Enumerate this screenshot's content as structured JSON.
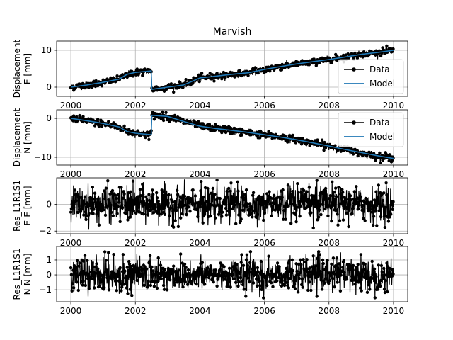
{
  "colors": {
    "data": "#000000",
    "model": "#1f77b4",
    "grid": "#b0b0b0"
  },
  "chart_data": [
    {
      "type": "line",
      "title": "Marvish",
      "ylabel": [
        "Displacement",
        "E [mm]"
      ],
      "xlim": [
        1999.56,
        2010.44
      ],
      "ylim": [
        -2.5,
        12.5
      ],
      "xticks": [
        2000,
        2002,
        2004,
        2006,
        2008,
        2010
      ],
      "yticks": [
        0,
        10
      ],
      "legend": {
        "placement": "lower-right",
        "entries": [
          "Data",
          "Model"
        ]
      },
      "series": [
        {
          "name": "Data",
          "style": "points-line",
          "noise": 0.45,
          "x": [
            2000.0,
            2000.5,
            2001.0,
            2001.5,
            2001.75,
            2002.0,
            2002.49,
            2002.51,
            2003.0,
            2003.5,
            2004.0,
            2004.5,
            2005.0,
            2005.5,
            2006.0,
            2006.5,
            2007.0,
            2007.5,
            2008.0,
            2008.5,
            2009.0,
            2009.5,
            2010.0
          ],
          "y": [
            0.0,
            0.6,
            1.3,
            2.2,
            3.5,
            4.0,
            4.4,
            -0.6,
            0.0,
            0.6,
            2.5,
            3.0,
            3.5,
            3.9,
            4.8,
            5.6,
            6.3,
            6.9,
            7.5,
            8.2,
            8.9,
            9.4,
            10.0
          ]
        },
        {
          "name": "Model",
          "style": "line",
          "x": [
            2000.0,
            2000.5,
            2001.0,
            2001.5,
            2001.75,
            2002.0,
            2002.49,
            2002.51,
            2003.0,
            2003.5,
            2004.0,
            2004.5,
            2005.0,
            2005.5,
            2006.0,
            2006.5,
            2007.0,
            2007.5,
            2008.0,
            2008.5,
            2009.0,
            2009.5,
            2010.0
          ],
          "y": [
            0.0,
            0.6,
            1.3,
            2.2,
            3.5,
            4.0,
            4.4,
            -0.6,
            0.0,
            0.6,
            2.5,
            3.0,
            3.5,
            3.9,
            4.8,
            5.6,
            6.3,
            6.9,
            7.5,
            8.2,
            8.9,
            9.4,
            10.0
          ]
        }
      ]
    },
    {
      "type": "line",
      "title": "",
      "ylabel": [
        "Displacement",
        "N [mm]"
      ],
      "xlim": [
        1999.56,
        2010.44
      ],
      "ylim": [
        -12.0,
        2.2
      ],
      "xticks": [
        2000,
        2002,
        2004,
        2006,
        2008,
        2010
      ],
      "yticks": [
        0,
        -10
      ],
      "legend": {
        "placement": "upper-right",
        "entries": [
          "Data",
          "Model"
        ]
      },
      "series": [
        {
          "name": "Data",
          "style": "points-line",
          "noise": 0.45,
          "x": [
            2000.0,
            2000.5,
            2001.0,
            2001.5,
            2001.75,
            2002.0,
            2002.49,
            2002.51,
            2003.0,
            2003.5,
            2004.0,
            2004.5,
            2005.0,
            2005.5,
            2006.0,
            2006.5,
            2007.0,
            2007.5,
            2008.0,
            2008.5,
            2009.0,
            2009.5,
            2010.0
          ],
          "y": [
            0.0,
            -0.6,
            -1.3,
            -2.2,
            -3.4,
            -3.8,
            -4.2,
            0.8,
            0.5,
            -0.8,
            -2.0,
            -2.6,
            -3.1,
            -3.6,
            -4.2,
            -4.8,
            -5.5,
            -6.3,
            -7.1,
            -8.0,
            -8.8,
            -9.6,
            -10.3
          ]
        },
        {
          "name": "Model",
          "style": "line",
          "x": [
            2000.0,
            2000.5,
            2001.0,
            2001.5,
            2001.75,
            2002.0,
            2002.49,
            2002.51,
            2003.0,
            2003.5,
            2004.0,
            2004.5,
            2005.0,
            2005.5,
            2006.0,
            2006.5,
            2007.0,
            2007.5,
            2008.0,
            2008.5,
            2009.0,
            2009.5,
            2010.0
          ],
          "y": [
            0.0,
            -0.6,
            -1.3,
            -2.2,
            -3.4,
            -3.8,
            -4.2,
            0.8,
            0.5,
            -0.8,
            -2.0,
            -2.6,
            -3.1,
            -3.6,
            -4.2,
            -4.8,
            -5.5,
            -6.3,
            -7.1,
            -8.0,
            -8.8,
            -9.6,
            -10.3
          ]
        }
      ]
    },
    {
      "type": "line",
      "title": "",
      "ylabel": [
        "Res_L1R1S1",
        "E-E [mm]"
      ],
      "xlim": [
        1999.56,
        2010.44
      ],
      "ylim": [
        -2.2,
        2.0
      ],
      "xticks": [
        2000,
        2002,
        2004,
        2006,
        2008,
        2010
      ],
      "yticks": [
        0,
        -2
      ],
      "legend": null,
      "series": [
        {
          "name": "",
          "style": "residual",
          "amplitude": 1.9,
          "x": [
            2000.0,
            2010.0
          ],
          "y": [
            0,
            0
          ]
        }
      ]
    },
    {
      "type": "line",
      "title": "",
      "ylabel": [
        "Res_L1R1S1",
        "N-N [mm]"
      ],
      "xlim": [
        1999.56,
        2010.44
      ],
      "ylim": [
        -1.8,
        1.9
      ],
      "xticks": [
        2000,
        2002,
        2004,
        2006,
        2008,
        2010
      ],
      "yticks": [
        1,
        0,
        -1
      ],
      "legend": null,
      "series": [
        {
          "name": "",
          "style": "residual",
          "amplitude": 1.6,
          "x": [
            2000.0,
            2010.0
          ],
          "y": [
            0,
            0
          ]
        }
      ]
    }
  ]
}
